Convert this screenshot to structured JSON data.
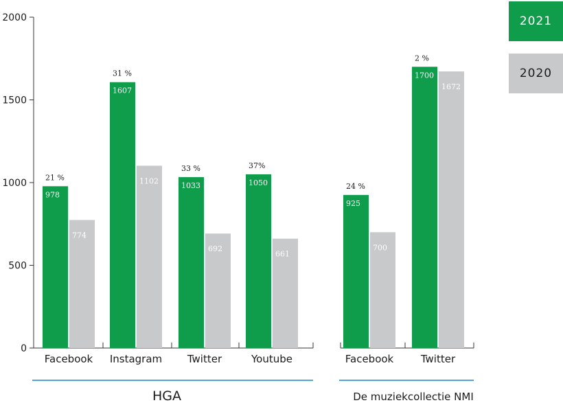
{
  "chart_data": {
    "type": "bar",
    "title": "",
    "xlabel": "",
    "ylabel": "",
    "ylim": [
      0,
      2000
    ],
    "yticks": [
      0,
      500,
      1000,
      1500,
      2000
    ],
    "grid": false,
    "legend_position": "top-right",
    "colors": {
      "2021": "#0f9c4b",
      "2020": "#c8c9cb"
    },
    "groups": [
      {
        "label": "HGA",
        "categories": [
          "Facebook",
          "Instagram",
          "Twitter",
          "Youtube"
        ]
      },
      {
        "label": "De muziekcollectie NMI",
        "categories": [
          "Facebook",
          "Twitter"
        ]
      }
    ],
    "categories": [
      "Facebook",
      "Instagram",
      "Twitter",
      "Youtube",
      "Facebook",
      "Twitter"
    ],
    "series": [
      {
        "name": "2021",
        "values": [
          978,
          1607,
          1033,
          1050,
          925,
          1700
        ],
        "value_labels": [
          "978",
          "1607",
          "1033",
          "1050",
          "925",
          "1700"
        ]
      },
      {
        "name": "2020",
        "values": [
          774,
          1102,
          692,
          661,
          700,
          1672
        ],
        "value_labels": [
          "774",
          "1102",
          "692",
          "661",
          "700",
          "1672"
        ]
      }
    ],
    "change_labels": [
      "21 %",
      "31 %",
      "33 %",
      "37%",
      "24 %",
      "2 %"
    ]
  }
}
